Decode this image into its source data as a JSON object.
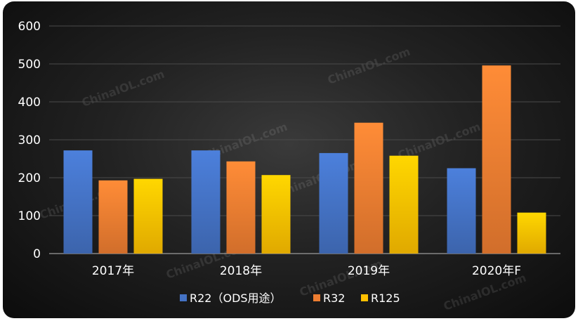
{
  "chart_data": {
    "type": "bar",
    "categories": [
      "2017年",
      "2018年",
      "2019年",
      "2020年F"
    ],
    "series": [
      {
        "name": "R22（ODS用途）",
        "values": [
          272,
          272,
          265,
          225
        ],
        "color": "#4472C4"
      },
      {
        "name": "R32",
        "values": [
          193,
          243,
          345,
          496
        ],
        "color": "#ED7D31"
      },
      {
        "name": "R125",
        "values": [
          197,
          207,
          258,
          108
        ],
        "color": "#FFC000"
      }
    ],
    "ylim": [
      0,
      600
    ],
    "yticks": [
      0,
      100,
      200,
      300,
      400,
      500,
      600
    ],
    "grid": true,
    "legend_position": "bottom",
    "background": "#1e1e1e"
  },
  "watermark": "ChinaIOL.com"
}
